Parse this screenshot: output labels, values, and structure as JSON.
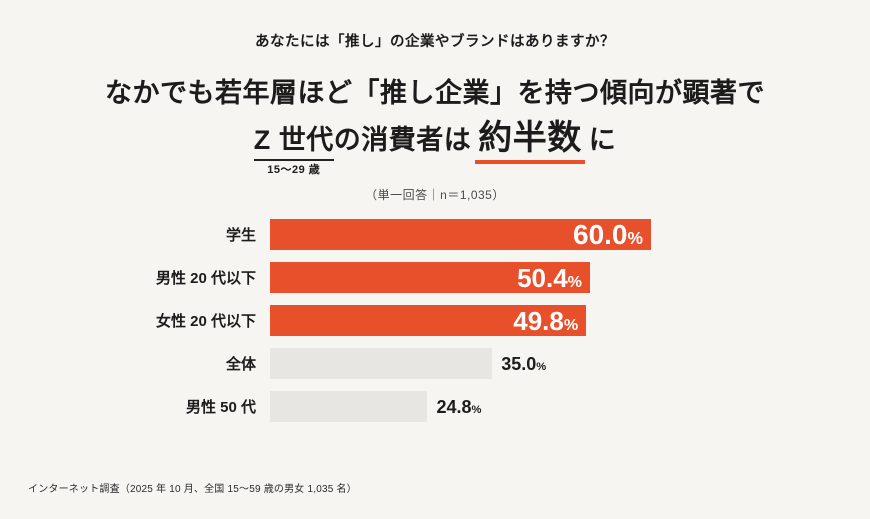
{
  "page": {
    "bg": "#F7F5F2",
    "accent": "#E84F2B",
    "gray_bar": "#E8E6E2"
  },
  "header": {
    "question": "あなたには「推し」の企業やブランドはありますか？",
    "headline_line1": "なかでも若年層ほど「推し企業」を持つ傾向が顕著で",
    "line2_z": "Z 世代",
    "line2_mid": "の消費者は",
    "line2_emphasis": "約半数",
    "line2_tail": "に",
    "z_annotation": "15〜29 歳",
    "note": "（単一回答｜n＝1,035）"
  },
  "chart_data": {
    "type": "bar",
    "orientation": "horizontal",
    "title": "あなたには「推し」の企業やブランドはありますか？",
    "categories": [
      "学生",
      "男性 20 代以下",
      "女性 20 代以下",
      "全体",
      "男性 50 代"
    ],
    "values": [
      60.0,
      50.4,
      49.8,
      35.0,
      24.8
    ],
    "value_labels": [
      "60.0",
      "50.4",
      "49.8",
      "35.0",
      "24.8"
    ],
    "unit": "%",
    "highlighted": [
      true,
      true,
      true,
      false,
      false
    ],
    "xlim": [
      0,
      63
    ],
    "grid": false,
    "legend": false,
    "bar_colors": {
      "highlight": "#E84F2B",
      "default": "#E8E6E2"
    }
  },
  "footer": {
    "source": "インターネット調査（2025 年 10 月、全国 15〜59 歳の男女 1,035 名）"
  }
}
